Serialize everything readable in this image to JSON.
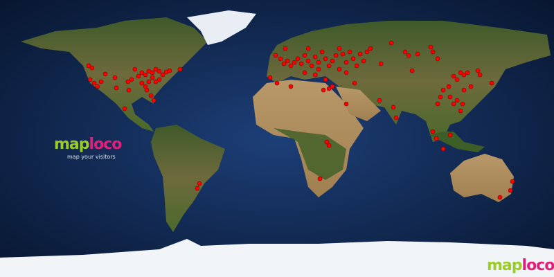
{
  "branding": {
    "logo_part1": "map",
    "logo_part2": "loco",
    "tagline": "map your visitors",
    "corner_logo_part1": "map",
    "corner_logo_part2": "loco",
    "logo_colors": {
      "map": "#9ccc2a",
      "loco": "#e0207a"
    }
  },
  "map": {
    "projection": "equirectangular",
    "style": "satellite night-blue ocean",
    "marker_color": "#ff0000",
    "visitor_locations": [
      [
        -122.4,
        47.3
      ],
      [
        -120.2,
        45.9
      ],
      [
        -121.5,
        38.3
      ],
      [
        -118.8,
        36
      ],
      [
        -116.6,
        33.8
      ],
      [
        -114.3,
        36.9
      ],
      [
        -111.6,
        41.9
      ],
      [
        -105.3,
        39.6
      ],
      [
        -104.4,
        32.9
      ],
      [
        -96.8,
        36.9
      ],
      [
        -94.5,
        38.3
      ],
      [
        -96.3,
        31.5
      ],
      [
        -92.3,
        45
      ],
      [
        -90,
        40.5
      ],
      [
        -87.8,
        42.8
      ],
      [
        -85.5,
        41.4
      ],
      [
        -83.3,
        43.7
      ],
      [
        -81,
        42.8
      ],
      [
        -78.8,
        45
      ],
      [
        -76.5,
        43.7
      ],
      [
        -74.3,
        41.4
      ],
      [
        -72,
        43.2
      ],
      [
        -69.8,
        44.1
      ],
      [
        -63,
        45
      ],
      [
        -87.8,
        36
      ],
      [
        -85.5,
        33.8
      ],
      [
        -83.3,
        36.9
      ],
      [
        -81,
        39.6
      ],
      [
        -78.8,
        36.9
      ],
      [
        -76.5,
        38.3
      ],
      [
        -84.6,
        31.5
      ],
      [
        -81.9,
        27.9
      ],
      [
        -80.1,
        24.8
      ],
      [
        -99,
        19.4
      ],
      [
        -50.4,
        -29.3
      ],
      [
        -51.8,
        -32.4
      ],
      [
        -0.9,
        54
      ],
      [
        2.3,
        51.8
      ],
      [
        4.5,
        48.6
      ],
      [
        6.8,
        50.4
      ],
      [
        9,
        47.3
      ],
      [
        11.3,
        49.5
      ],
      [
        13.5,
        51.8
      ],
      [
        15.8,
        48.6
      ],
      [
        18,
        54
      ],
      [
        20.3,
        50.4
      ],
      [
        22.5,
        47.3
      ],
      [
        24.8,
        53.1
      ],
      [
        27,
        49.5
      ],
      [
        29.3,
        56.3
      ],
      [
        31.5,
        51.8
      ],
      [
        33.8,
        47.3
      ],
      [
        36,
        50.4
      ],
      [
        38.3,
        54
      ],
      [
        40.5,
        58.5
      ],
      [
        42.8,
        54.9
      ],
      [
        45,
        49.5
      ],
      [
        47.3,
        56.3
      ],
      [
        49.5,
        51.8
      ],
      [
        51.8,
        47.3
      ],
      [
        54,
        54.9
      ],
      [
        56.3,
        50.4
      ],
      [
        58.5,
        56.3
      ],
      [
        5.4,
        58.5
      ],
      [
        20.3,
        58.5
      ],
      [
        -4.5,
        39.6
      ],
      [
        0,
        36
      ],
      [
        9,
        33.8
      ],
      [
        18,
        42.8
      ],
      [
        27,
        45
      ],
      [
        31.5,
        38.3
      ],
      [
        33.8,
        32.4
      ],
      [
        36,
        33.8
      ],
      [
        30.2,
        31.5
      ],
      [
        45,
        42.8
      ],
      [
        50.4,
        36
      ],
      [
        24.8,
        41.4
      ],
      [
        40.5,
        45
      ],
      [
        60.8,
        58.5
      ],
      [
        67.5,
        48.6
      ],
      [
        74.3,
        62.1
      ],
      [
        83.3,
        56.3
      ],
      [
        85.5,
        54
      ],
      [
        87.8,
        44.1
      ],
      [
        99.9,
        59.4
      ],
      [
        101.3,
        56.3
      ],
      [
        104.4,
        51.8
      ],
      [
        91.4,
        54.9
      ],
      [
        66.6,
        24.8
      ],
      [
        75.6,
        20.3
      ],
      [
        77.4,
        13.5
      ],
      [
        114.8,
        40.5
      ],
      [
        117,
        38.3
      ],
      [
        119.3,
        42.8
      ],
      [
        121.5,
        41.4
      ],
      [
        123.8,
        42.8
      ],
      [
        130.5,
        44.1
      ],
      [
        131.9,
        41.4
      ],
      [
        139.5,
        36
      ],
      [
        111.6,
        33.8
      ],
      [
        108,
        31.5
      ],
      [
        106.2,
        27
      ],
      [
        112.5,
        27
      ],
      [
        117,
        24.8
      ],
      [
        120.6,
        22.5
      ],
      [
        114.8,
        22.5
      ],
      [
        104.4,
        22.5
      ],
      [
        119.3,
        18
      ],
      [
        121.5,
        31.5
      ],
      [
        126,
        33.8
      ],
      [
        101.3,
        4.5
      ],
      [
        103.5,
        0
      ],
      [
        108,
        -6.8
      ],
      [
        112.5,
        2.3
      ],
      [
        32.4,
        -2.3
      ],
      [
        33.8,
        -4.5
      ],
      [
        27.9,
        -26.1
      ],
      [
        45,
        22.5
      ],
      [
        153,
        -27.9
      ],
      [
        151.7,
        -33.8
      ],
      [
        144.9,
        -38.3
      ]
    ]
  }
}
